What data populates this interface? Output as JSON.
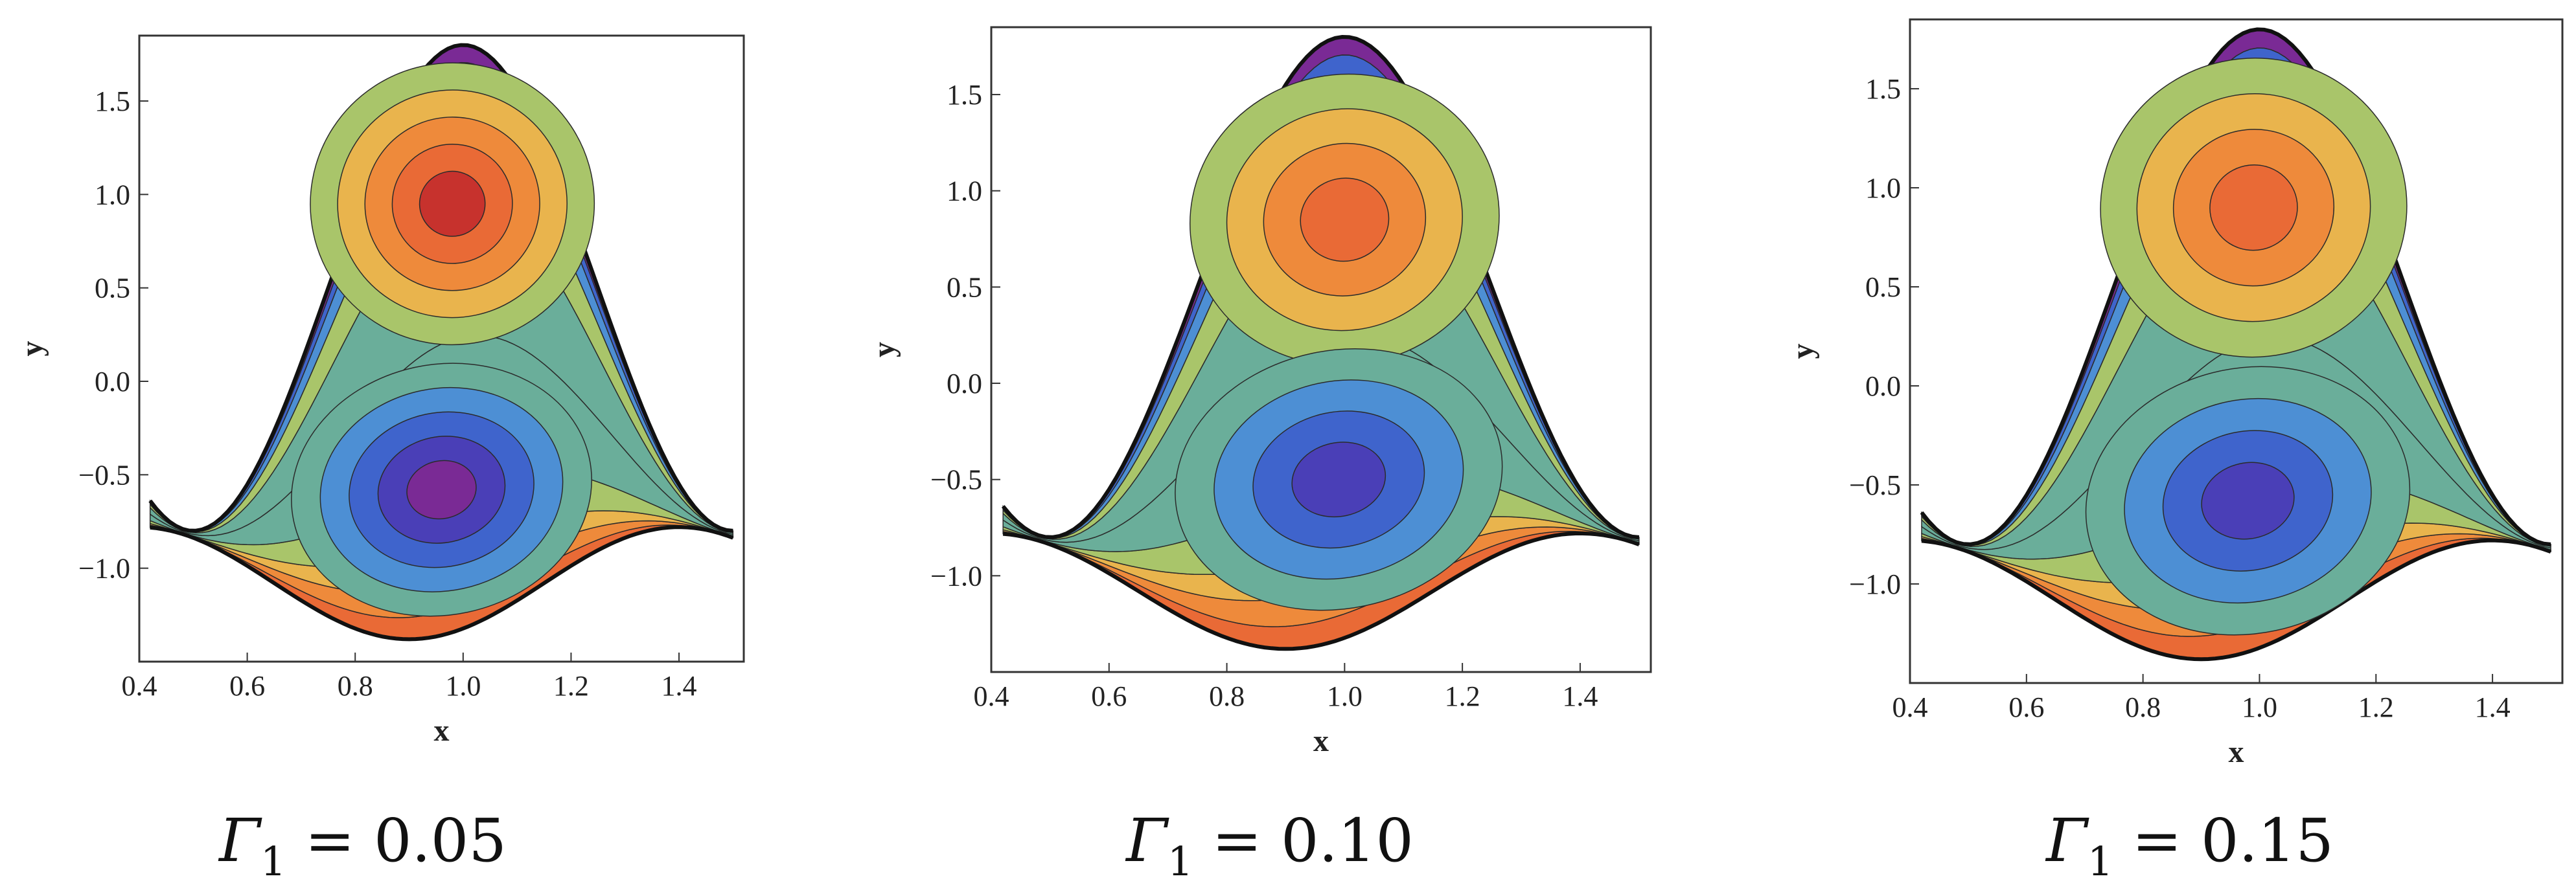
{
  "colors": {
    "bands": [
      "#c7322d",
      "#e96a36",
      "#ee8a3b",
      "#e9b44d",
      "#a9c56a",
      "#6aae9a",
      "#4d8fd4",
      "#3f64cc",
      "#4a3fb7",
      "#7a2a95"
    ],
    "frame": "#333333",
    "contour_line": "#2b2b2b"
  },
  "chart_data": [
    {
      "type": "contour",
      "xlabel": "x",
      "ylabel": "y",
      "xlim": [
        0.4,
        1.52
      ],
      "ylim": [
        -1.5,
        1.85
      ],
      "xticks": [
        "0.4",
        "0.6",
        "0.8",
        "1.0",
        "1.2",
        "1.4"
      ],
      "yticks": [
        "−1.0",
        "−0.5",
        "0.0",
        "0.5",
        "1.0",
        "1.5"
      ],
      "caption": {
        "symbol": "Γ",
        "subscript": "1",
        "text": " = 0.05"
      },
      "gamma1": 0.05,
      "upper_vortex": {
        "x": 0.98,
        "y": 0.95,
        "levels": 4
      },
      "lower_vortex": {
        "x": 0.96,
        "y": -0.58,
        "levels": 4
      }
    },
    {
      "type": "contour",
      "xlabel": "x",
      "ylabel": "y",
      "xlim": [
        0.4,
        1.52
      ],
      "ylim": [
        -1.5,
        1.85
      ],
      "xticks": [
        "0.4",
        "0.6",
        "0.8",
        "1.0",
        "1.2",
        "1.4"
      ],
      "yticks": [
        "−1.0",
        "−0.5",
        "0.0",
        "0.5",
        "1.0",
        "1.5"
      ],
      "caption": {
        "symbol": "Γ",
        "subscript": "1",
        "text": " = 0.10"
      },
      "gamma1": 0.1,
      "upper_vortex": {
        "x": 1.0,
        "y": 0.85,
        "levels": 3
      },
      "lower_vortex": {
        "x": 0.99,
        "y": -0.5,
        "levels": 3
      }
    },
    {
      "type": "contour",
      "xlabel": "x",
      "ylabel": "y",
      "xlim": [
        0.4,
        1.52
      ],
      "ylim": [
        -1.5,
        1.85
      ],
      "xticks": [
        "0.4",
        "0.6",
        "0.8",
        "1.0",
        "1.2",
        "1.4"
      ],
      "yticks": [
        "−1.0",
        "−0.5",
        "0.0",
        "0.5",
        "1.0",
        "1.5"
      ],
      "caption": {
        "symbol": "Γ",
        "subscript": "1",
        "text": " = 0.15"
      },
      "gamma1": 0.15,
      "upper_vortex": {
        "x": 0.99,
        "y": 0.9,
        "levels": 3
      },
      "lower_vortex": {
        "x": 0.98,
        "y": -0.58,
        "levels": 3
      }
    }
  ]
}
